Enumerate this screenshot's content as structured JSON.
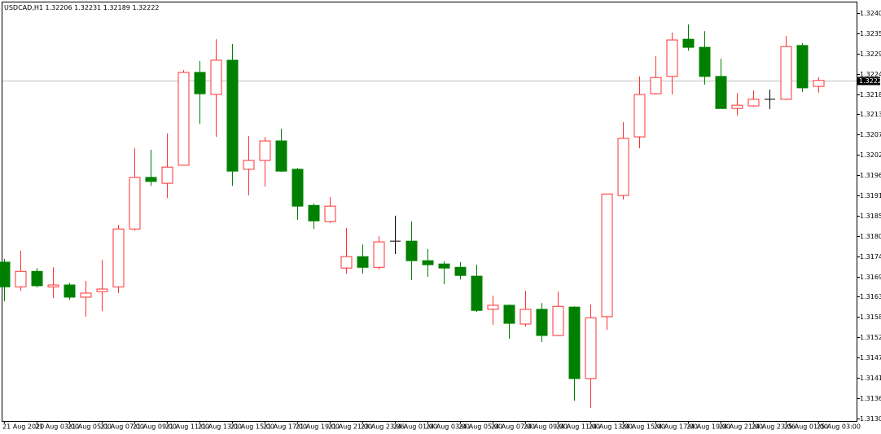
{
  "chart_data": {
    "type": "candlestick",
    "title": "USDCAD,H1",
    "categories": [
      "21 Aug 2020",
      null,
      "21 Aug 03:00",
      null,
      "21 Aug 05:00",
      null,
      "21 Aug 07:00",
      null,
      "21 Aug 09:00",
      null,
      "21 Aug 11:00",
      null,
      "21 Aug 13:00",
      null,
      "21 Aug 15:00",
      null,
      "21 Aug 17:00",
      null,
      "21 Aug 19:00",
      null,
      "21 Aug 21:00",
      null,
      "23 Aug 23:06",
      null,
      "24 Aug 01:00",
      null,
      "24 Aug 03:00",
      null,
      "24 Aug 05:00",
      null,
      "24 Aug 07:00",
      null,
      "24 Aug 09:00",
      null,
      "24 Aug 11:00",
      null,
      "24 Aug 13:00",
      null,
      "24 Aug 15:00",
      null,
      "24 Aug 17:00",
      null,
      "24 Aug 19:00",
      null,
      "24 Aug 21:00",
      null,
      "24 Aug 23:06",
      null,
      "25 Aug 01:00",
      null,
      "25 Aug 03:00"
    ],
    "open": [
      1.31729,
      1.31662,
      1.31704,
      1.31662,
      1.31667,
      1.31634,
      1.31649,
      1.31662,
      1.31819,
      1.31959,
      1.31943,
      1.31992,
      1.32244,
      1.32184,
      1.32277,
      1.31981,
      1.32005,
      1.32058,
      1.31981,
      1.31883,
      1.31839,
      1.31713,
      1.31744,
      1.31715,
      1.31786,
      1.31786,
      1.31733,
      1.31724,
      1.31715,
      1.31691,
      1.31601,
      1.31612,
      1.31561,
      1.31601,
      1.3153,
      1.31607,
      1.31413,
      1.31581,
      1.3191,
      1.32069,
      1.32186,
      1.32233,
      1.32334,
      1.32312,
      1.32233,
      1.32146,
      1.32153,
      1.32171,
      1.32171,
      1.32317,
      1.32206
    ],
    "high": [
      1.31738,
      1.3176,
      1.31713,
      1.31715,
      1.31673,
      1.31678,
      1.31735,
      1.3183,
      1.32038,
      1.32034,
      1.32078,
      1.3225,
      1.32275,
      1.32334,
      1.32321,
      1.32071,
      1.32069,
      1.32091,
      1.31985,
      1.31888,
      1.31906,
      1.31822,
      1.31777,
      1.31799,
      1.31855,
      1.31839,
      1.31764,
      1.31731,
      1.31729,
      1.31722,
      1.31638,
      1.31614,
      1.31651,
      1.31618,
      1.31649,
      1.31609,
      1.31614,
      1.31914,
      1.32109,
      1.32233,
      1.32288,
      1.32352,
      1.32374,
      1.32356,
      1.32281,
      1.32188,
      1.32195,
      1.32197,
      1.32343,
      1.32323,
      1.32231
    ],
    "low": [
      1.31623,
      1.31651,
      1.3166,
      1.31631,
      1.31627,
      1.31581,
      1.31596,
      1.31645,
      1.31815,
      1.31936,
      1.31903,
      1.31992,
      1.32104,
      1.32069,
      1.31936,
      1.3191,
      1.31934,
      1.31974,
      1.31844,
      1.31819,
      1.31835,
      1.31698,
      1.31698,
      1.31709,
      1.31751,
      1.3168,
      1.31689,
      1.31669,
      1.31682,
      1.31594,
      1.31559,
      1.31521,
      1.31554,
      1.31512,
      1.31528,
      1.31353,
      1.31333,
      1.31545,
      1.31899,
      1.32038,
      1.32184,
      1.32184,
      1.32303,
      1.32211,
      1.32146,
      1.32127,
      1.32151,
      1.32144,
      1.32169,
      1.32191,
      1.32189
    ],
    "close": [
      1.31662,
      1.31704,
      1.31665,
      1.31667,
      1.31634,
      1.31645,
      1.31656,
      1.31819,
      1.31959,
      1.31948,
      1.31987,
      1.32244,
      1.32186,
      1.32277,
      1.31976,
      1.32005,
      1.32058,
      1.31976,
      1.31881,
      1.31841,
      1.31881,
      1.31744,
      1.31715,
      1.31784,
      1.31786,
      1.31733,
      1.31722,
      1.31713,
      1.31693,
      1.31598,
      1.31612,
      1.31563,
      1.31601,
      1.3153,
      1.31609,
      1.31413,
      1.31578,
      1.31914,
      1.32065,
      1.32184,
      1.3223,
      1.32332,
      1.32312,
      1.32233,
      1.32146,
      1.32155,
      1.32171,
      1.32171,
      1.32314,
      1.32202,
      1.32222
    ],
    "up_color": "#ff3030",
    "down_color": "#008000",
    "doji_color": "#000000",
    "ylim": [
      1.31298,
      1.32436
    ],
    "yticks": [
      1.32405,
      {
        "value": 1.3235,
        "label": "1.32350"
      },
      1.32295,
      {
        "value": 1.3224,
        "label": "1.32240"
      },
      1.32185,
      {
        "value": 1.3213,
        "label": "1.32130"
      },
      1.32075,
      {
        "value": 1.3202,
        "label": "1.32020"
      },
      1.31965,
      {
        "value": 1.3191,
        "label": "1.31910"
      },
      1.31855,
      {
        "value": 1.318,
        "label": "1.31800"
      },
      1.31745,
      {
        "value": 1.3169,
        "label": "1.31690"
      },
      1.31635,
      {
        "value": 1.3158,
        "label": "1.31580"
      },
      1.31525,
      {
        "value": 1.3147,
        "label": "1.31470"
      },
      1.31415,
      {
        "value": 1.3136,
        "label": "1.31360"
      },
      1.31305
    ]
  }
}
